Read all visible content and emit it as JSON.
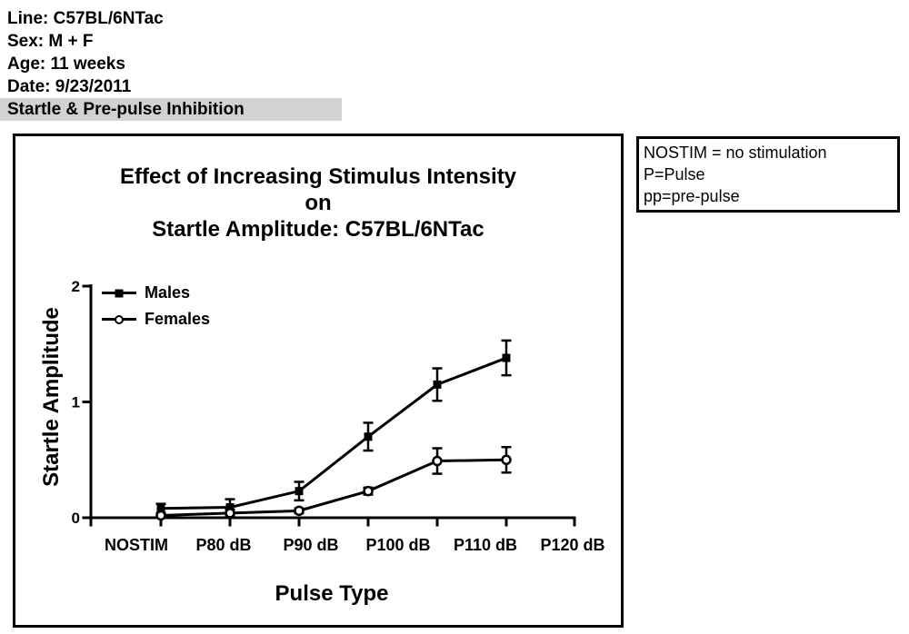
{
  "header": {
    "lines": [
      "Line: C57BL/6NTac",
      "Sex: M + F",
      "Age: 11 weeks",
      "Date: 9/23/2011"
    ],
    "highlight": "Startle & Pre-pulse Inhibition",
    "highlight_bg": "#d2d2d2"
  },
  "note_box": {
    "lines": [
      "NOSTIM = no stimulation",
      "P=Pulse",
      "pp=pre-pulse"
    ]
  },
  "chart_data": {
    "type": "line",
    "title_lines": [
      "Effect of Increasing Stimulus Intensity",
      "on",
      "Startle Amplitude: C57BL/6NTac"
    ],
    "categories": [
      "NOSTIM",
      "P80 dB",
      "P90 dB",
      "P100 dB",
      "P110 dB",
      "P120 dB"
    ],
    "xlabel": "Pulse Type",
    "ylabel": "Startle Amplitude",
    "ylim": [
      0,
      2
    ],
    "yticks": [
      0,
      1,
      2
    ],
    "grid": false,
    "legend_position": "top-left-inside",
    "error_bars": "sem",
    "line_color": "#000000",
    "series": [
      {
        "name": "Males",
        "marker": "filled-square",
        "color": "#000000",
        "values": [
          0.08,
          0.09,
          0.23,
          0.7,
          1.15,
          1.38
        ],
        "sem": [
          0.04,
          0.07,
          0.08,
          0.12,
          0.14,
          0.15
        ]
      },
      {
        "name": "Females",
        "marker": "open-circle",
        "color": "#000000",
        "values": [
          0.02,
          0.04,
          0.06,
          0.23,
          0.49,
          0.5
        ],
        "sem": [
          0.02,
          0.03,
          0.02,
          0.03,
          0.11,
          0.11
        ]
      }
    ]
  }
}
